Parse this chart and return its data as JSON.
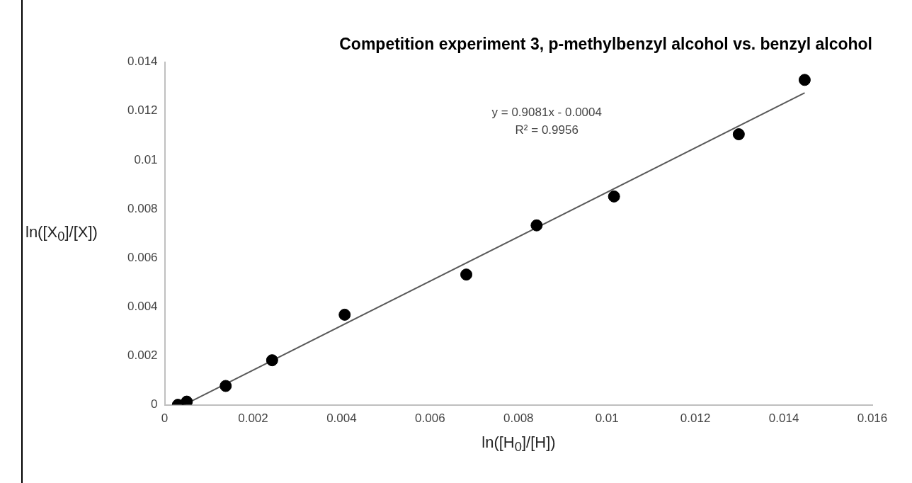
{
  "chart_data": {
    "type": "scatter",
    "title": "Competition experiment 3, p-methylbenzyl alcohol vs. benzyl alcohol",
    "xlabel": "ln([H$_{0}$]/[H])",
    "ylabel": "ln([X$_{0}$]/[X])",
    "series": [
      {
        "color": "#000000",
        "x": [
          0.0003,
          0.0005,
          0.00138,
          0.00243,
          0.00407,
          0.00682,
          0.00841,
          0.01016,
          0.01298,
          0.01447
        ],
        "values": [
          0,
          0.00013,
          0.00077,
          0.00182,
          0.00368,
          0.00532,
          0.00733,
          0.00851,
          0.01105,
          0.01327
        ]
      },
      {
        "type": "line",
        "color": "#595959",
        "x": [
          0.00044,
          0.01447
        ],
        "values": [
          0,
          0.01274
        ],
        "marker": "none"
      }
    ],
    "xlim": [
      0,
      0.016
    ],
    "xticks": [
      0,
      0.002,
      0.004,
      0.006,
      0.008,
      0.01,
      0.012,
      0.014,
      0.016
    ],
    "ylim": [
      0,
      0.014
    ],
    "yticks": [
      0,
      0.002,
      0.004,
      0.006,
      0.008,
      0.01,
      0.012,
      0.014
    ],
    "annotations": [
      "y = 0.9081x - 0.0004",
      "R² = 0.9956"
    ],
    "marker": "circle",
    "grid": false,
    "legend": false
  }
}
